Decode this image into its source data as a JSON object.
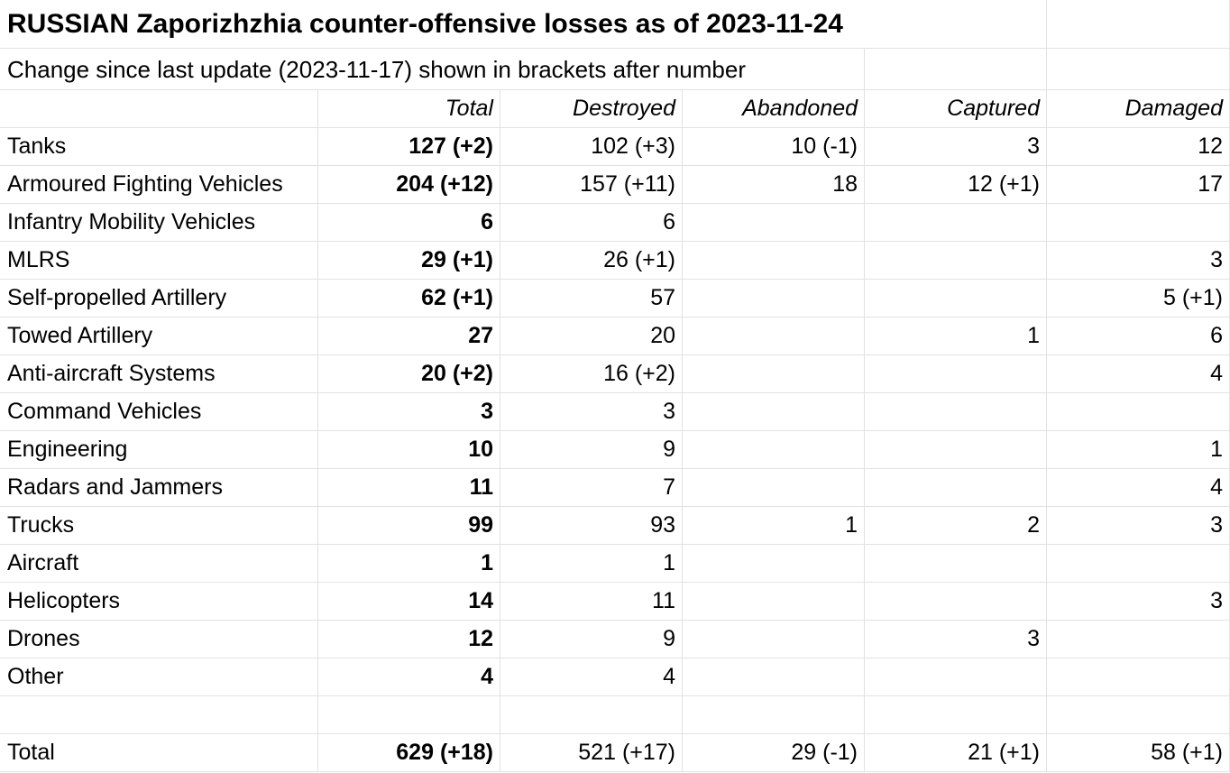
{
  "header": {
    "title": "RUSSIAN Zaporizhzhia counter-offensive losses as of 2023-11-24",
    "subtitle": "Change since last update (2023-11-17) shown in brackets after number"
  },
  "table": {
    "columns": [
      "Total",
      "Destroyed",
      "Abandoned",
      "Captured",
      "Damaged"
    ],
    "rows": [
      [
        "Tanks",
        "127 (+2)",
        "102 (+3)",
        "10 (-1)",
        "3",
        "12"
      ],
      [
        "Armoured Fighting Vehicles",
        "204 (+12)",
        "157 (+11)",
        "18",
        "12 (+1)",
        "17"
      ],
      [
        "Infantry Mobility Vehicles",
        "6",
        "6",
        null,
        null,
        null
      ],
      [
        "MLRS",
        "29 (+1)",
        "26 (+1)",
        null,
        null,
        "3"
      ],
      [
        "Self-propelled Artillery",
        "62 (+1)",
        "57",
        null,
        null,
        "5 (+1)"
      ],
      [
        "Towed Artillery",
        "27",
        "20",
        null,
        "1",
        "6"
      ],
      [
        "Anti-aircraft Systems",
        "20 (+2)",
        "16 (+2)",
        null,
        null,
        "4"
      ],
      [
        "Command Vehicles",
        "3",
        "3",
        null,
        null,
        null
      ],
      [
        "Engineering",
        "10",
        "9",
        null,
        null,
        "1"
      ],
      [
        "Radars and Jammers",
        "11",
        "7",
        null,
        null,
        "4"
      ],
      [
        "Trucks",
        "99",
        "93",
        "1",
        "2",
        "3"
      ],
      [
        "Aircraft",
        "1",
        "1",
        null,
        null,
        null
      ],
      [
        "Helicopters",
        "14",
        "11",
        null,
        null,
        "3"
      ],
      [
        "Drones",
        "12",
        "9",
        null,
        "3",
        null
      ],
      [
        "Other",
        "4",
        "4",
        null,
        null,
        null
      ]
    ],
    "total": [
      "Total",
      "629 (+18)",
      "521 (+17)",
      "29 (-1)",
      "21 (+1)",
      "58 (+1)"
    ]
  }
}
